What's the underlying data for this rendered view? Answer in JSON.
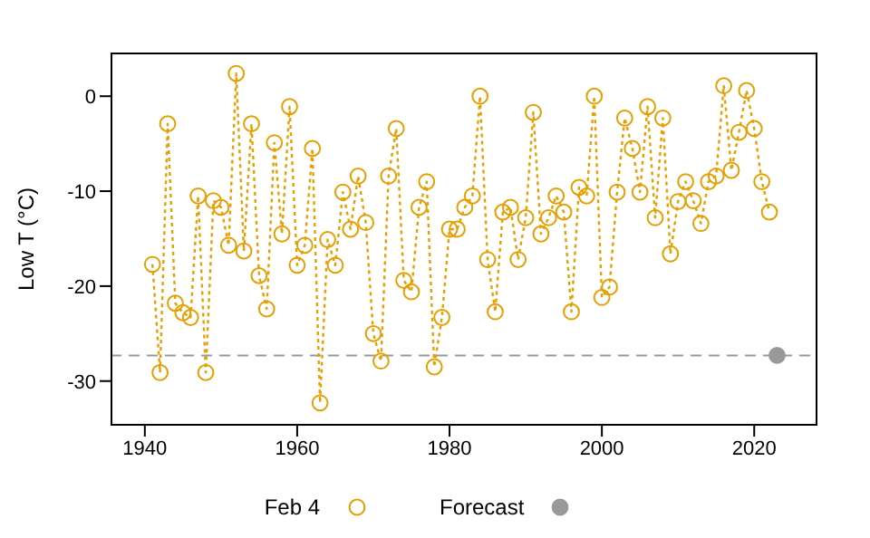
{
  "chart_data": {
    "type": "line",
    "xlabel": null,
    "ylabel": "Low T (°C)",
    "x": [
      1941,
      1942,
      1943,
      1944,
      1945,
      1946,
      1947,
      1948,
      1949,
      1950,
      1951,
      1952,
      1953,
      1954,
      1955,
      1956,
      1957,
      1958,
      1959,
      1960,
      1961,
      1962,
      1963,
      1964,
      1965,
      1966,
      1967,
      1968,
      1969,
      1970,
      1971,
      1972,
      1973,
      1974,
      1975,
      1976,
      1977,
      1978,
      1979,
      1980,
      1981,
      1982,
      1983,
      1984,
      1985,
      1986,
      1987,
      1988,
      1989,
      1990,
      1991,
      1992,
      1993,
      1994,
      1995,
      1996,
      1997,
      1998,
      1999,
      2000,
      2001,
      2002,
      2003,
      2004,
      2005,
      2006,
      2007,
      2008,
      2009,
      2010,
      2011,
      2012,
      2013,
      2014,
      2015,
      2016,
      2017,
      2018,
      2019,
      2020,
      2021,
      2022
    ],
    "series": [
      {
        "name": "Feb 4",
        "color": "#e69f00",
        "marker": "circle",
        "line_style": "dotted",
        "values": [
          -17.7,
          -29.1,
          -2.9,
          -21.8,
          -22.8,
          -23.3,
          -10.5,
          -29.1,
          -11.0,
          -11.7,
          -15.7,
          2.4,
          -16.3,
          -2.9,
          -18.9,
          -22.4,
          -4.9,
          -14.5,
          -1.1,
          -17.8,
          -15.7,
          -5.5,
          -32.3,
          -15.1,
          -17.8,
          -10.1,
          -14.0,
          -8.4,
          -13.3,
          -25.0,
          -27.9,
          -8.4,
          -3.4,
          -19.4,
          -20.6,
          -11.7,
          -9.0,
          -28.5,
          -23.3,
          -14.0,
          -14.0,
          -11.7,
          -10.5,
          0.0,
          -17.2,
          -22.7,
          -12.2,
          -11.7,
          -17.2,
          -12.8,
          -1.7,
          -14.5,
          -12.8,
          -10.5,
          -12.2,
          -22.7,
          -9.6,
          -10.5,
          0.0,
          -21.2,
          -20.1,
          -10.1,
          -2.3,
          -5.5,
          -10.1,
          -1.1,
          -12.8,
          -2.3,
          -16.6,
          -11.1,
          -9.0,
          -11.0,
          -13.4,
          -9.0,
          -8.4,
          1.1,
          -7.8,
          -3.8,
          0.6,
          -3.4,
          -9.0,
          -12.2
        ]
      },
      {
        "name": "Forecast",
        "type": "scatter",
        "color": "#999999",
        "marker": "circle",
        "x": [
          2023
        ],
        "values": [
          -27.3
        ]
      }
    ],
    "xlim": [
      1935.5,
      2028.3
    ],
    "ylim": [
      -34.7,
      4.6
    ],
    "xticks": [
      1940,
      1960,
      1980,
      2000,
      2020
    ],
    "yticks": [
      -30,
      -20,
      -10,
      0
    ],
    "ref_lines": [
      {
        "axis": "y",
        "value": -27.3,
        "color": "#999999",
        "line_style": "dashed"
      }
    ],
    "grid": false,
    "legend": "bottom"
  }
}
